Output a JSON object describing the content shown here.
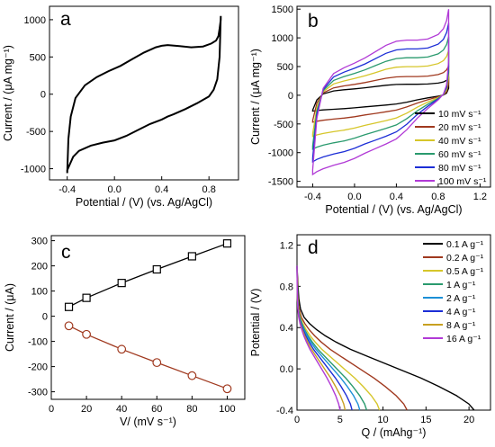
{
  "chart_data": [
    {
      "panel": "a",
      "type": "line",
      "xlabel": "Potential / (V) (vs. Ag/AgCl)",
      "ylabel": "Current / (μA mg⁻¹)",
      "xlim": [
        -0.55,
        1.05
      ],
      "ylim": [
        -1150,
        1180
      ],
      "xticks": [
        -0.4,
        0.0,
        0.4,
        0.8
      ],
      "xtick_labels": [
        "-0.4",
        "0.0",
        "0.4",
        "0.8"
      ],
      "yticks": [
        -1000,
        -500,
        0,
        500,
        1000
      ],
      "ytick_labels": [
        "-1000",
        "-500",
        "0",
        "500",
        "1000"
      ],
      "series": [
        {
          "color": "#000000",
          "x": [
            -0.4,
            -0.39,
            -0.37,
            -0.33,
            -0.25,
            -0.15,
            -0.05,
            0.05,
            0.15,
            0.25,
            0.35,
            0.4,
            0.45,
            0.55,
            0.65,
            0.75,
            0.82,
            0.86,
            0.88,
            0.89,
            0.9,
            0.9,
            0.89,
            0.87,
            0.84,
            0.8,
            0.7,
            0.6,
            0.5,
            0.45,
            0.4,
            0.3,
            0.2,
            0.1,
            0.0,
            -0.1,
            -0.2,
            -0.3,
            -0.35,
            -0.38,
            -0.4,
            -0.4
          ],
          "y": [
            -1060,
            -600,
            -300,
            -50,
            120,
            230,
            310,
            380,
            470,
            560,
            630,
            650,
            660,
            645,
            630,
            640,
            680,
            720,
            780,
            880,
            1000,
            1050,
            500,
            200,
            60,
            -30,
            -120,
            -200,
            -270,
            -300,
            -340,
            -400,
            -480,
            -560,
            -620,
            -650,
            -690,
            -760,
            -840,
            -950,
            -1020,
            -1060
          ]
        }
      ]
    },
    {
      "panel": "b",
      "type": "line",
      "xlabel": "Potential / (V) (vs. Ag/AgCl)",
      "ylabel": "Current / (μA mg⁻¹)",
      "xlim": [
        -0.55,
        1.3
      ],
      "ylim": [
        -1600,
        1550
      ],
      "xticks": [
        -0.4,
        0.0,
        0.4,
        0.8,
        1.2
      ],
      "xtick_labels": [
        "-0.4",
        "0.0",
        "0.4",
        "0.8",
        "1.2"
      ],
      "yticks": [
        -1500,
        -1000,
        -500,
        0,
        500,
        1000,
        1500
      ],
      "ytick_labels": [
        "-1500",
        "-1000",
        "-500",
        "0",
        "500",
        "1000",
        "1500"
      ],
      "legend_position": "bottom-right",
      "cv_shape_potential": [
        -0.4,
        -0.36,
        -0.3,
        -0.2,
        -0.1,
        0.0,
        0.1,
        0.2,
        0.3,
        0.4,
        0.5,
        0.6,
        0.7,
        0.8,
        0.85,
        0.88,
        0.9,
        0.9,
        0.88,
        0.85,
        0.8,
        0.7,
        0.6,
        0.5,
        0.4,
        0.3,
        0.2,
        0.1,
        0.0,
        -0.1,
        -0.2,
        -0.3,
        -0.36,
        -0.4,
        -0.4
      ],
      "cv_shape_current_at_100": [
        -1300,
        -400,
        120,
        380,
        480,
        560,
        650,
        760,
        870,
        940,
        960,
        960,
        980,
        1060,
        1160,
        1300,
        1500,
        600,
        180,
        20,
        -80,
        -230,
        -400,
        -600,
        -760,
        -850,
        -930,
        -1010,
        -1100,
        -1170,
        -1220,
        -1280,
        -1330,
        -1380,
        -1300
      ],
      "series": [
        {
          "name": "10 mV s⁻¹",
          "scale": 0.2,
          "color": "#000000"
        },
        {
          "name": "20 mV s⁻¹",
          "scale": 0.34,
          "color": "#a0391f"
        },
        {
          "name": "40 mV s⁻¹",
          "scale": 0.52,
          "color": "#d6c62a"
        },
        {
          "name": "60 mV s⁻¹",
          "scale": 0.68,
          "color": "#2a9a6e"
        },
        {
          "name": "80 mV s⁻¹",
          "scale": 0.84,
          "color": "#1c2ed6"
        },
        {
          "name": "100 mV s⁻¹",
          "scale": 1.0,
          "color": "#b13ad6"
        }
      ]
    },
    {
      "panel": "c",
      "type": "line",
      "xlabel": "V/ (mV s⁻¹)",
      "ylabel": "Current / (μA)",
      "xlim": [
        0,
        110
      ],
      "ylim": [
        -330,
        320
      ],
      "xticks": [
        0,
        20,
        40,
        60,
        80,
        100
      ],
      "xtick_labels": [
        "0",
        "20",
        "40",
        "60",
        "80",
        "100"
      ],
      "yticks": [
        -300,
        -200,
        -100,
        0,
        100,
        200,
        300
      ],
      "ytick_labels": [
        "-300",
        "-200",
        "-100",
        "0",
        "100",
        "200",
        "300"
      ],
      "series": [
        {
          "marker": "square",
          "color": "#000000",
          "x": [
            10,
            20,
            40,
            60,
            80,
            100
          ],
          "y": [
            37,
            73,
            132,
            186,
            238,
            289
          ]
        },
        {
          "marker": "circle",
          "color": "#a0391f",
          "x": [
            10,
            20,
            40,
            60,
            80,
            100
          ],
          "y": [
            -38,
            -72,
            -131,
            -184,
            -236,
            -288
          ]
        }
      ]
    },
    {
      "panel": "d",
      "type": "line",
      "xlabel": "Q / (mAhg⁻¹)",
      "ylabel": "Potential / (V)",
      "xlim": [
        0,
        22.5
      ],
      "ylim": [
        -0.4,
        1.3
      ],
      "xticks": [
        0,
        5,
        10,
        15,
        20
      ],
      "xtick_labels": [
        "0",
        "5",
        "10",
        "15",
        "20"
      ],
      "yticks": [
        -0.4,
        0.0,
        0.4,
        0.8,
        1.2
      ],
      "ytick_labels": [
        "-0.4",
        "0.0",
        "0.4",
        "0.8",
        "1.2"
      ],
      "legend_position": "top-right",
      "discharge_shape_fraction": [
        0,
        0.005,
        0.01,
        0.02,
        0.04,
        0.07,
        0.11,
        0.16,
        0.22,
        0.3,
        0.4,
        0.5,
        0.6,
        0.7,
        0.8,
        0.9,
        0.97,
        1.0
      ],
      "discharge_shape_potential": [
        1.0,
        0.82,
        0.68,
        0.58,
        0.5,
        0.44,
        0.38,
        0.32,
        0.26,
        0.19,
        0.12,
        0.05,
        -0.02,
        -0.09,
        -0.17,
        -0.26,
        -0.34,
        -0.4
      ],
      "series": [
        {
          "name": "0.1 A g⁻¹",
          "capacity": 20.6,
          "color": "#000000"
        },
        {
          "name": "0.2 A g⁻¹",
          "capacity": 12.8,
          "color": "#a0391f"
        },
        {
          "name": "0.5 A g⁻¹",
          "capacity": 9.6,
          "color": "#d6c62a"
        },
        {
          "name": "1 A g⁻¹",
          "capacity": 8.1,
          "color": "#2a9a6e"
        },
        {
          "name": "2 A g⁻¹",
          "capacity": 7.3,
          "color": "#1c8fd6"
        },
        {
          "name": "4 A g⁻¹",
          "capacity": 6.4,
          "color": "#1c2ed6"
        },
        {
          "name": "8 A g⁻¹",
          "capacity": 5.6,
          "color": "#c8a020"
        },
        {
          "name": "16 A g⁻¹",
          "capacity": 5.0,
          "color": "#b13ad6"
        }
      ]
    }
  ]
}
